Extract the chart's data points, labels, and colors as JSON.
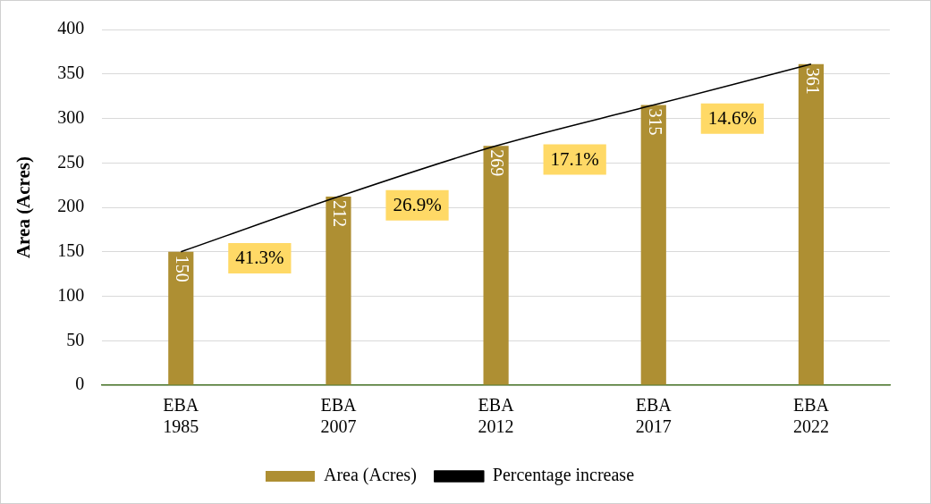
{
  "chart_data": {
    "type": "bar",
    "ylabel": "Area (Acres)",
    "categories": [
      "EBA 1985",
      "EBA 2007",
      "EBA 2012",
      "EBA 2017",
      "EBA 2022"
    ],
    "series": [
      {
        "name": "Area (Acres)",
        "color": "#ae8f33",
        "values": [
          150,
          212,
          269,
          315,
          361
        ],
        "value_labels": [
          "150",
          "212",
          "269",
          "315",
          "361"
        ]
      },
      {
        "name": "Percentage increase",
        "type": "line",
        "color": "#000000",
        "values": [
          150,
          212,
          269,
          315,
          361
        ]
      }
    ],
    "annotations": [
      "41.3%",
      "26.9%",
      "17.1%",
      "14.6%"
    ],
    "ylim": [
      0,
      400
    ],
    "yticks": [
      0,
      50,
      100,
      150,
      200,
      250,
      300,
      350,
      400
    ],
    "grid": "y",
    "legend": "bottom",
    "marker": "none"
  }
}
